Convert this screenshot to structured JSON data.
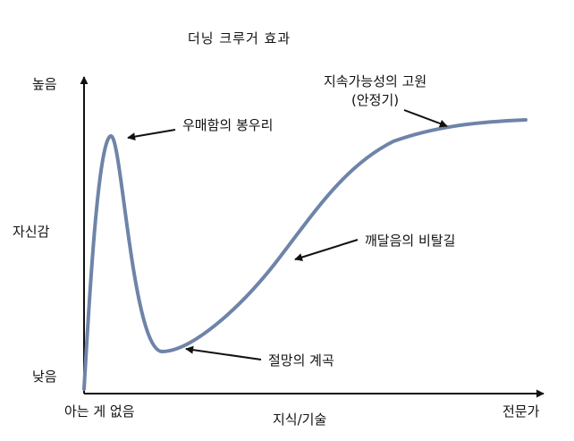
{
  "title": "더닝 크루거 효과",
  "y_axis": {
    "label": "자신감",
    "high": "높음",
    "low": "낮음"
  },
  "x_axis": {
    "label": "지식/기술",
    "low": "아는 게 없음",
    "high": "전문가"
  },
  "annotations": {
    "peak": "우매함의 봉우리",
    "valley": "절망의 계곡",
    "slope": "깨달음의 비탈길",
    "plateau_line1": "지속가능성의 고원",
    "plateau_line2": "(안정기)"
  },
  "colors": {
    "curve": "#6e84a8",
    "axis": "#111111",
    "text": "#111111",
    "background": "#ffffff"
  }
}
